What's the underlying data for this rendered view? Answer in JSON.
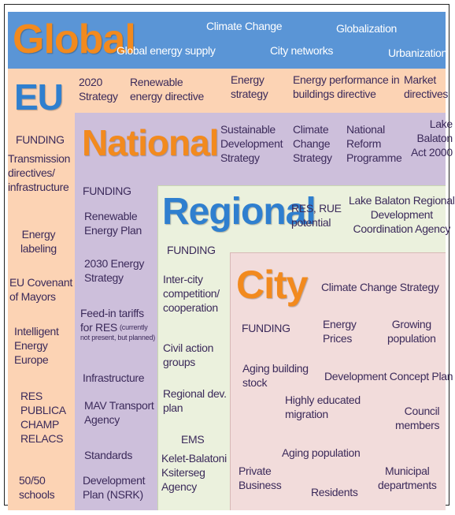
{
  "global": {
    "title": "Global",
    "items": [
      "Climate Change",
      "Globalization",
      "Global energy supply",
      "City networks",
      "Urbanization"
    ]
  },
  "eu": {
    "title": "EU",
    "top": [
      "2020\nStrategy",
      "Renewable\nenergy directive",
      "Energy\nstrategy",
      "Energy performance in\nbuildings directive",
      "Market\ndirectives"
    ],
    "side": [
      "FUNDING",
      "Transmission\ndirectives/\ninfrastructure",
      "Energy\nlabeling",
      "EU Covenant\nof Mayors",
      "Intelligent\nEnergy\nEurope",
      "RES\nPUBLICA\nCHAMP\nRELACS",
      "50/50\nschools"
    ]
  },
  "national": {
    "title": "National",
    "top": [
      "Sustainable\nDevelopment\nStrategy",
      "Climate\nChange\nStrategy",
      "National\nReform\nProgramme",
      "Lake\nBalaton\nAct 2000"
    ],
    "side": [
      "FUNDING",
      "Renewable\nEnergy Plan",
      "2030 Energy\nStrategy",
      "Feed-in tariffs\nfor RES",
      "Infrastructure",
      "MAV Transport\nAgency",
      "Standards",
      "Development\nPlan (NSRK)"
    ],
    "note": "(currently\nnot present, but planned)"
  },
  "regional": {
    "title": "Regional",
    "top": [
      "RES, RUE\npotential",
      "Lake Balaton Regional\nDevelopment\nCoordination Agency"
    ],
    "side": [
      "FUNDING",
      "Inter-city\ncompetition/\ncooperation",
      "Civil action\ngroups",
      "Regional dev.\nplan",
      "EMS",
      "Kelet-Balatoni\nKsiterseg\nAgency"
    ]
  },
  "city": {
    "title": "City",
    "items": [
      "Climate Change Strategy",
      "FUNDING",
      "Energy\nPrices",
      "Growing\npopulation",
      "Aging building\nstock",
      "Development Concept Plan",
      "Highly educated\nmigration",
      "Council\nmembers",
      "Aging population",
      "Private\nBusiness",
      "Residents",
      "Municipal\ndepartments"
    ]
  }
}
